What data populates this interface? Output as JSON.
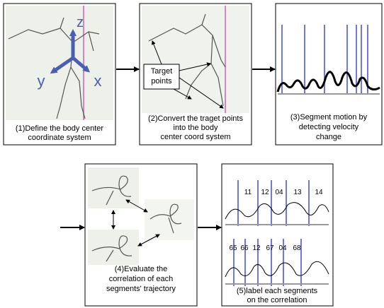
{
  "panels": [
    {
      "caption": [
        "(1)Define the body center",
        "coordinate system"
      ],
      "axes": [
        "z",
        "y",
        "x"
      ]
    },
    {
      "caption": [
        "(2)Convert the traget points",
        "into the body",
        "center coord system"
      ],
      "callout": [
        "Target",
        "points"
      ]
    },
    {
      "caption": [
        "(3)Segment motion by",
        "detecting velocity",
        "change"
      ]
    },
    {
      "caption": [
        "(4)Evaluate the",
        "correlation of each",
        "segments' trajectory"
      ]
    },
    {
      "caption": [
        "(5)label each segments",
        "on the correlation"
      ],
      "top_labels": [
        "11",
        "12",
        "04",
        "13",
        "14"
      ],
      "bottom_labels": [
        "65",
        "66",
        "12",
        "67",
        "04",
        "68"
      ]
    }
  ]
}
